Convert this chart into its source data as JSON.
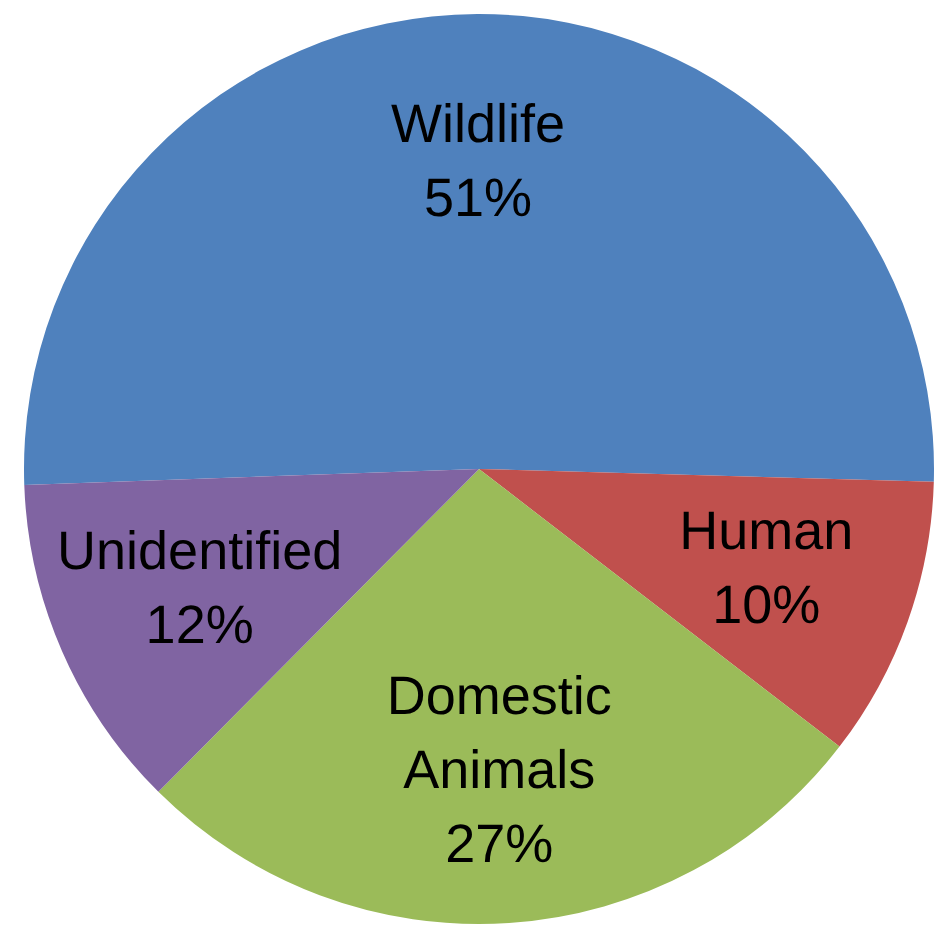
{
  "chart_data": {
    "type": "pie",
    "categories": [
      "Wildlife",
      "Human",
      "Domestic Animals",
      "Unidentified"
    ],
    "values": [
      51,
      10,
      27,
      12
    ],
    "colors": [
      "#4f81bd",
      "#c0504d",
      "#9bbb59",
      "#8064a2"
    ],
    "value_labels": [
      "51%",
      "10%",
      "27%",
      "12%"
    ]
  }
}
